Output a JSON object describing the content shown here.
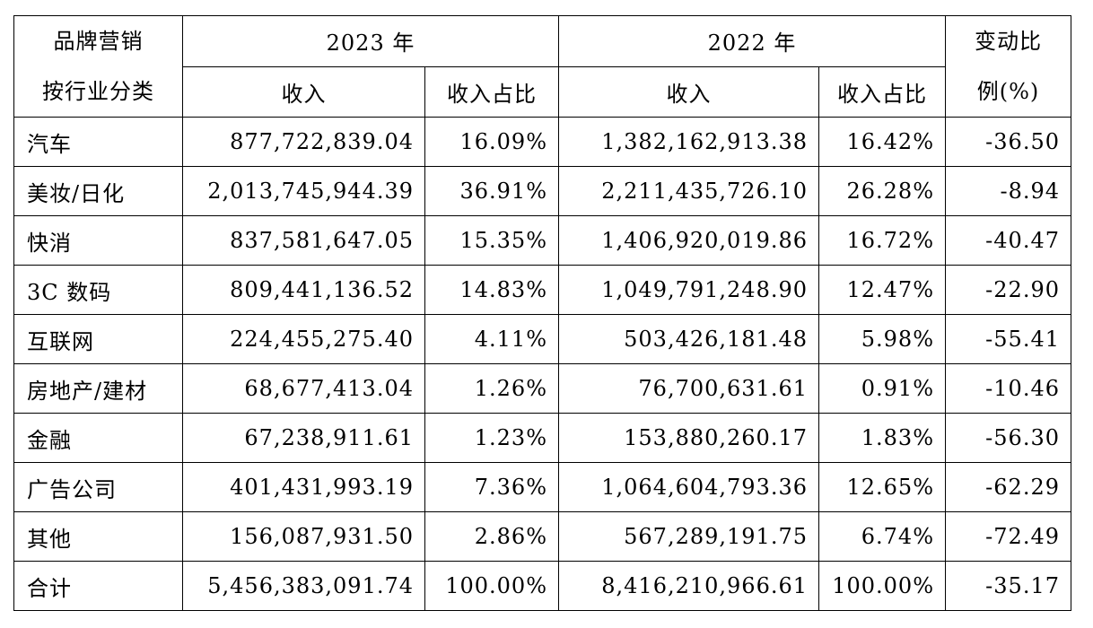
{
  "header": {
    "category": [
      "品牌营销",
      "按行业分类"
    ],
    "year_a": "2023 年",
    "year_b": "2022 年",
    "change": [
      "变动比",
      "例(%)"
    ],
    "sub": [
      "收入",
      "收入占比",
      "收入",
      "收入占比"
    ]
  },
  "table": {
    "rows": [
      [
        "汽车",
        "877,722,839.04",
        "16.09%",
        "1,382,162,913.38",
        "16.42%",
        "-36.50"
      ],
      [
        "美妆/日化",
        "2,013,745,944.39",
        "36.91%",
        "2,211,435,726.10",
        "26.28%",
        "-8.94"
      ],
      [
        "快消",
        "837,581,647.05",
        "15.35%",
        "1,406,920,019.86",
        "16.72%",
        "-40.47"
      ],
      [
        "3C 数码",
        "809,441,136.52",
        "14.83%",
        "1,049,791,248.90",
        "12.47%",
        "-22.90"
      ],
      [
        "互联网",
        "224,455,275.40",
        "4.11%",
        "503,426,181.48",
        "5.98%",
        "-55.41"
      ],
      [
        "房地产/建材",
        "68,677,413.04",
        "1.26%",
        "76,700,631.61",
        "0.91%",
        "-10.46"
      ],
      [
        "金融",
        "67,238,911.61",
        "1.23%",
        "153,880,260.17",
        "1.83%",
        "-56.30"
      ],
      [
        "广告公司",
        "401,431,993.19",
        "7.36%",
        "1,064,604,793.36",
        "12.65%",
        "-62.29"
      ],
      [
        "其他",
        "156,087,931.50",
        "2.86%",
        "567,289,191.75",
        "6.74%",
        "-72.49"
      ],
      [
        "合计",
        "5,456,383,091.74",
        "100.00%",
        "8,416,210,966.61",
        "100.00%",
        "-35.17"
      ]
    ]
  }
}
